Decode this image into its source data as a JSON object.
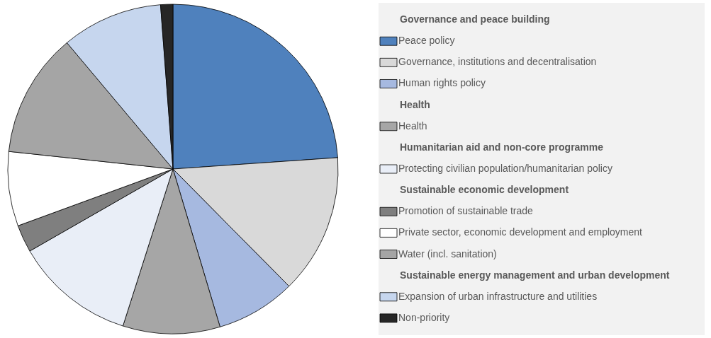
{
  "chart_data": {
    "type": "pie",
    "legend": "right",
    "categories": [
      "Peace policy",
      "Governance, institutions and decentralisation",
      "Human rights policy",
      "Health",
      "Protecting civilian population/humanitarian policy",
      "Promotion of sustainable trade",
      "Private sector, economic development and employment",
      "Water (incl. sanitation)",
      "Expansion of urban infrastructure and utilities",
      "Non-priority"
    ],
    "values": [
      23.9,
      13.7,
      7.8,
      9.5,
      11.8,
      2.7,
      7.3,
      12.2,
      9.9,
      1.2
    ],
    "colors": [
      "#4f81bd",
      "#d9d9d9",
      "#a6b9e0",
      "#a6a6a6",
      "#e9eef7",
      "#7f7f7f",
      "#ffffff",
      "#a5a5a5",
      "#c6d6ee",
      "#262626"
    ],
    "annotations": [
      "Governance and peace building",
      "Health",
      "Humanitarian aid and non-core programme",
      "Sustainable economic development",
      "Sustainable energy management and urban development"
    ]
  }
}
